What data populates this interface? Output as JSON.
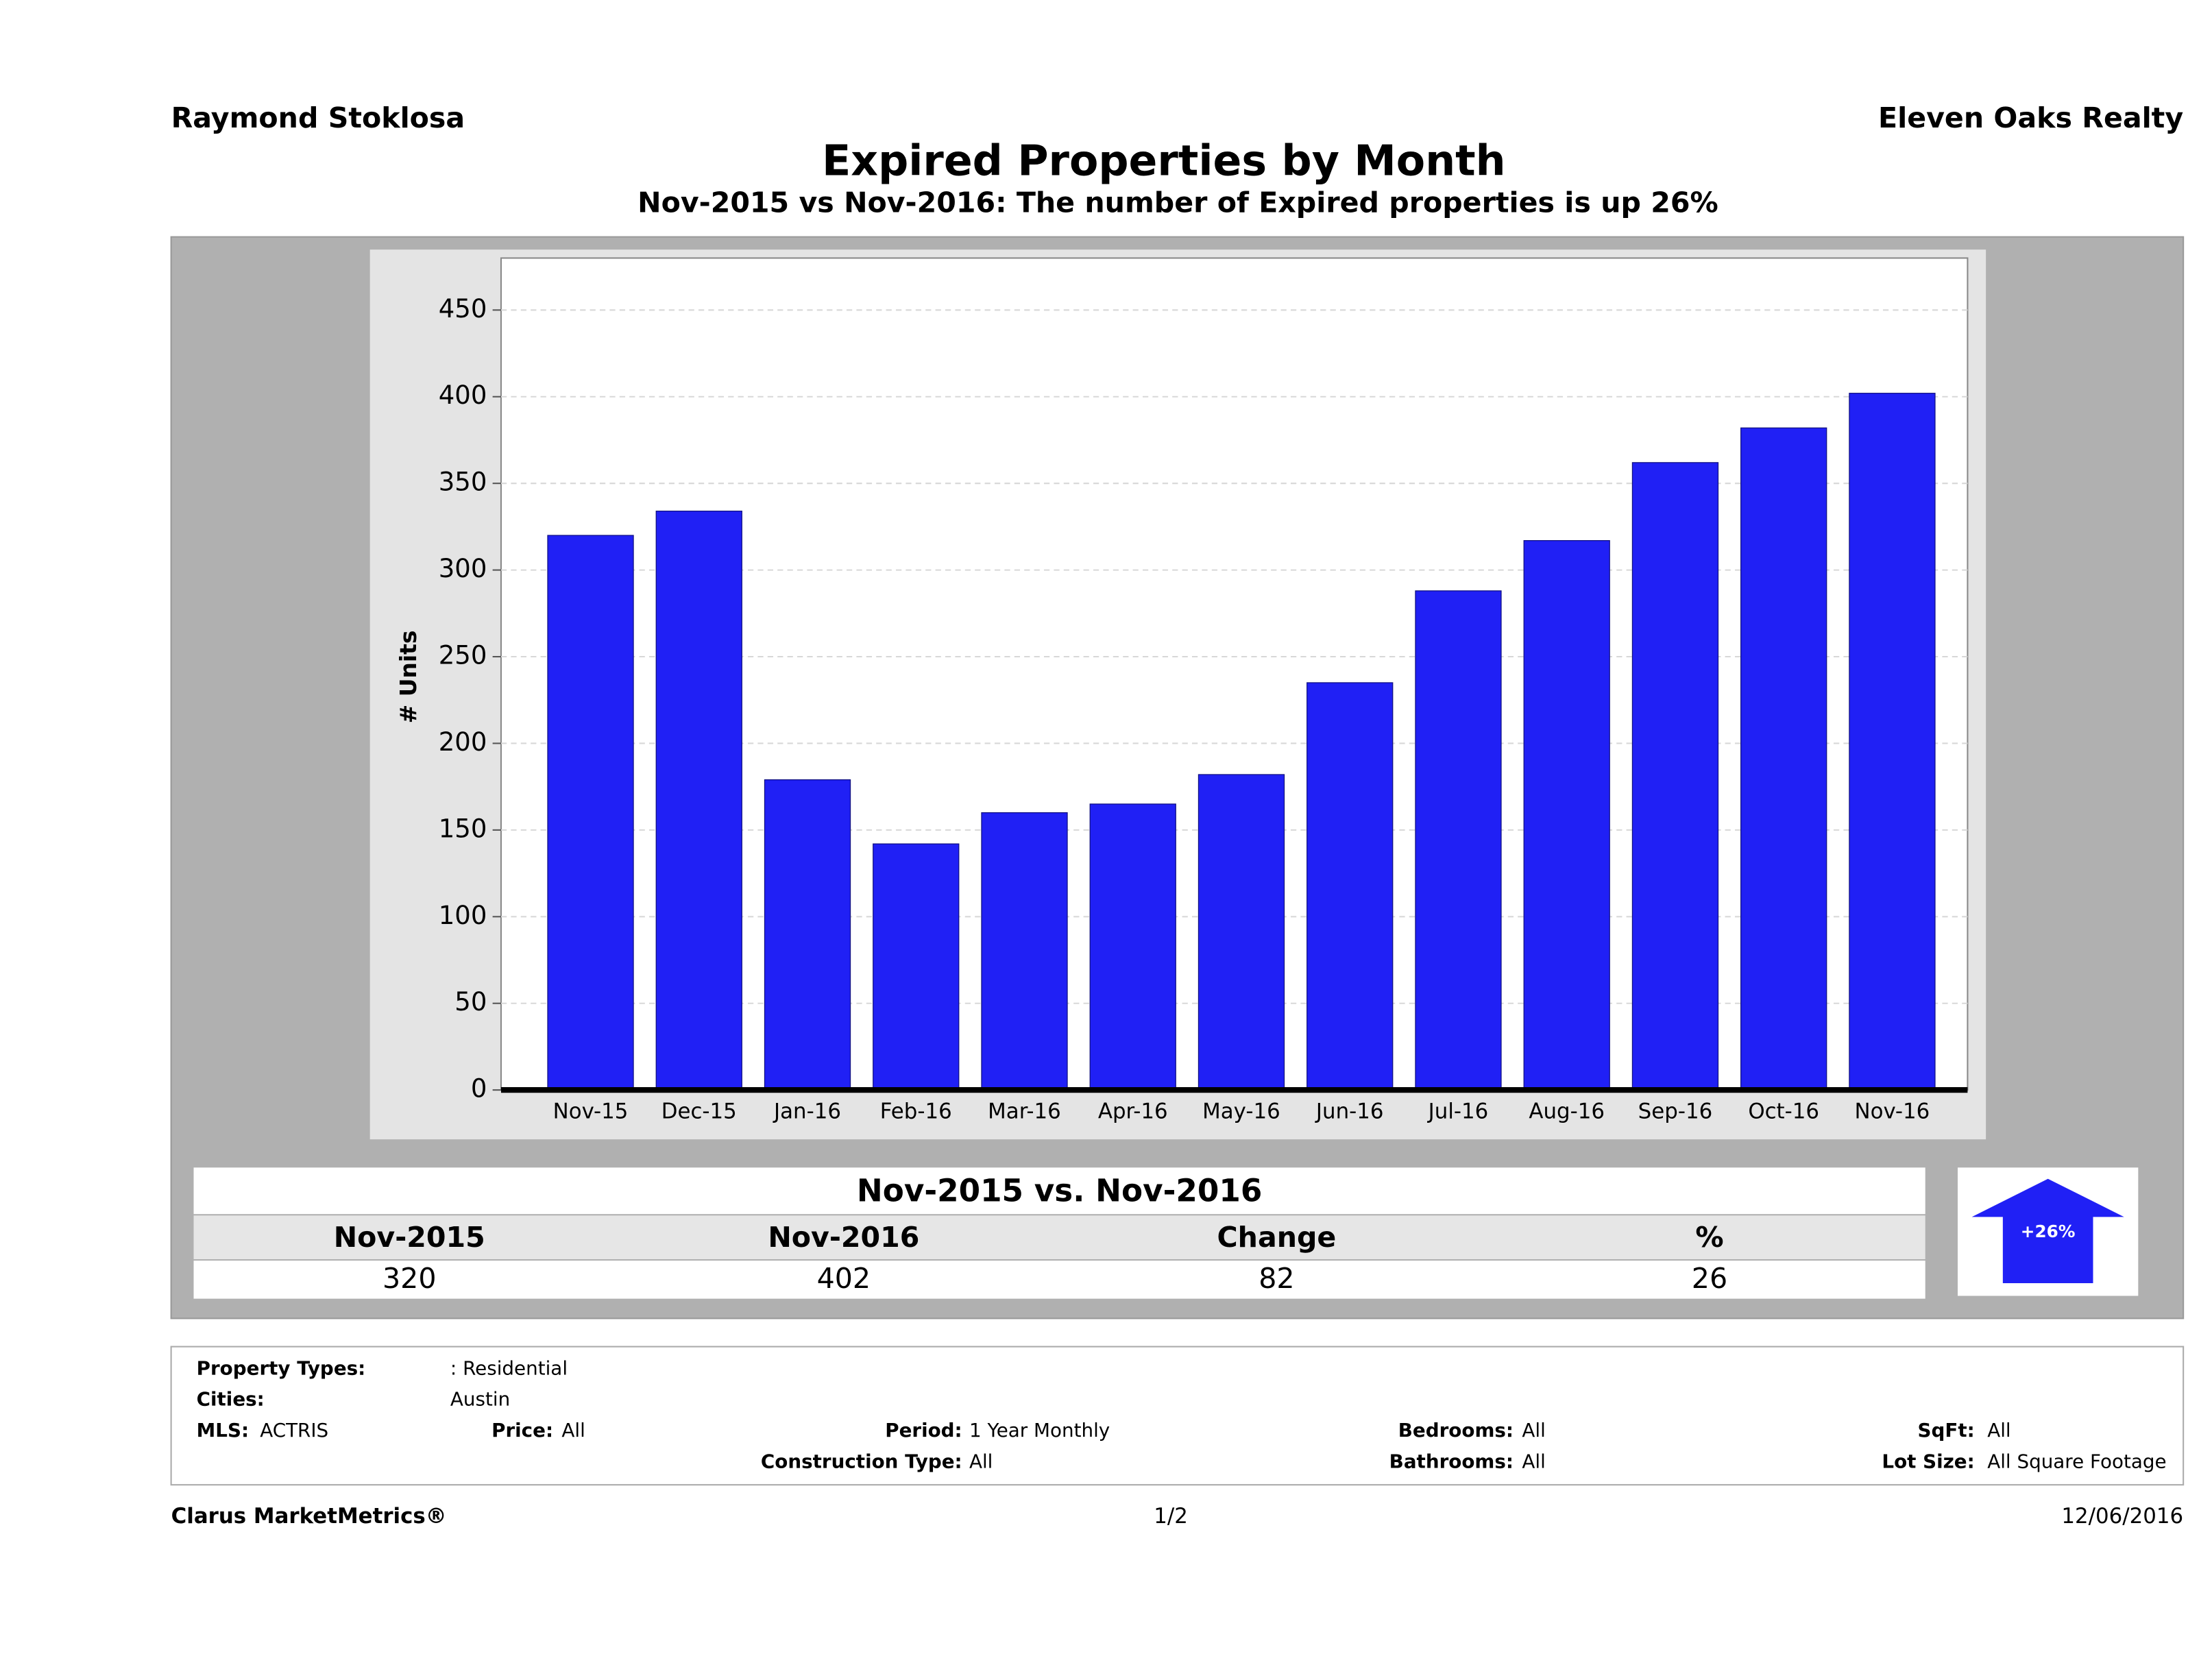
{
  "header": {
    "agent": "Raymond Stoklosa",
    "company": "Eleven Oaks Realty"
  },
  "chart_data": {
    "type": "bar",
    "title": "Expired Properties by Month",
    "subtitle": "Nov-2015 vs Nov-2016: The number of Expired properties is up 26%",
    "y_label": "# Units",
    "categories": [
      "Nov-15",
      "Dec-15",
      "Jan-16",
      "Feb-16",
      "Mar-16",
      "Apr-16",
      "May-16",
      "Jun-16",
      "Jul-16",
      "Aug-16",
      "Sep-16",
      "Oct-16",
      "Nov-16"
    ],
    "values": [
      320,
      334,
      179,
      142,
      160,
      165,
      182,
      235,
      288,
      317,
      362,
      382,
      402
    ],
    "color": "#2020f5",
    "ylim": [
      0,
      480
    ],
    "yticks": [
      0,
      50,
      100,
      150,
      200,
      250,
      300,
      350,
      400,
      450
    ],
    "grid": true
  },
  "summary": {
    "title": "Nov-2015 vs. Nov-2016",
    "headers": [
      "Nov-2015",
      "Nov-2016",
      "Change",
      "%"
    ],
    "values": [
      "320",
      "402",
      "82",
      "26"
    ],
    "badge": "+26%"
  },
  "filters": [
    {
      "label": "Property Types:",
      "value": ": Residential"
    },
    {
      "label": "Cities:",
      "value": "Austin"
    },
    {
      "label": "MLS:",
      "value": "ACTRIS"
    },
    {
      "label": "Price:",
      "value": "All"
    },
    {
      "label": "Period:",
      "value": "1 Year Monthly"
    },
    {
      "label": "Construction Type:",
      "value": "All"
    },
    {
      "label": "Bedrooms:",
      "value": "All"
    },
    {
      "label": "Bathrooms:",
      "value": "All"
    },
    {
      "label": "SqFt:",
      "value": "All"
    },
    {
      "label": "Lot Size:",
      "value": "All Square Footage"
    }
  ],
  "footer": {
    "brand": "Clarus MarketMetrics®",
    "page": "1/2",
    "date": "12/06/2016"
  }
}
